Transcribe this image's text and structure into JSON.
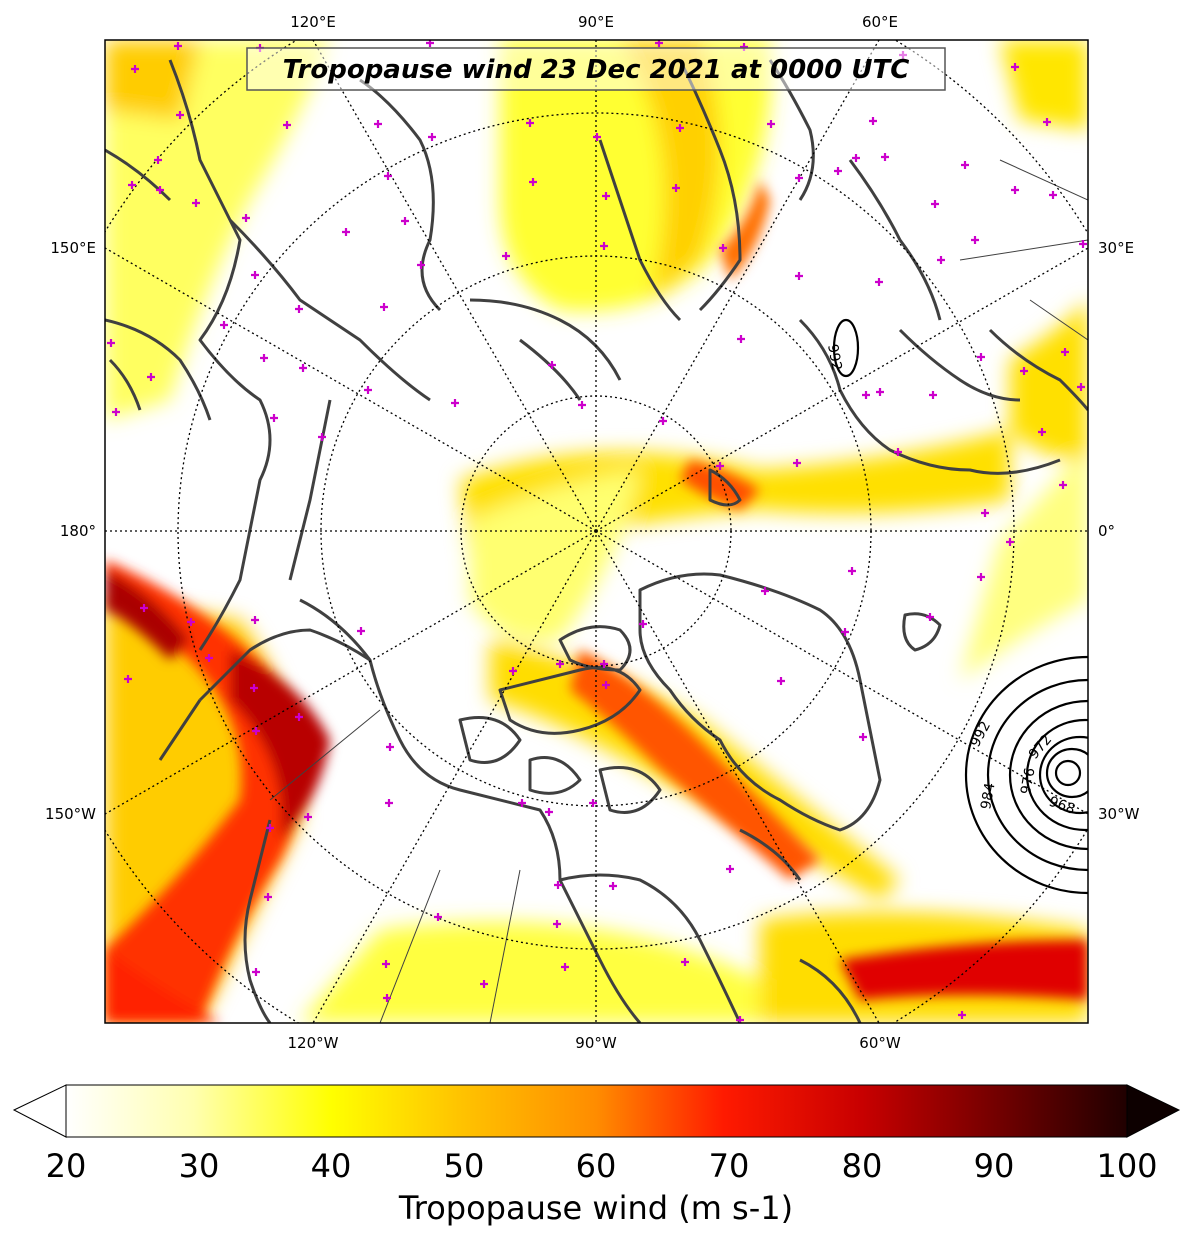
{
  "title": "Tropopause wind 23 Dec 2021 at 0000 UTC",
  "map": {
    "projection": "north-polar-stereographic",
    "field": "tropopause wind speed",
    "station_marker_color": "#cc00cc",
    "coastline_color": "#404040",
    "longitude_labels": {
      "top": [
        "120°E",
        "90°E",
        "60°E"
      ],
      "bottom": [
        "120°W",
        "90°W",
        "60°W"
      ],
      "left": [
        "150°E",
        "180°",
        "150°W"
      ],
      "right": [
        "30°E",
        "0°",
        "30°W"
      ]
    },
    "pressure_contours": {
      "units": "hPa",
      "labels": [
        "992",
        "992",
        "984",
        "976",
        "972",
        "968"
      ]
    }
  },
  "colorbar": {
    "label": "Tropopause wind (m s-1)",
    "ticks": [
      "20",
      "30",
      "40",
      "50",
      "60",
      "70",
      "80",
      "90",
      "100"
    ],
    "min": 20,
    "max": 100,
    "extend": "both",
    "colormap": [
      "#ffffff",
      "#ffff99",
      "#ffff00",
      "#ffcc00",
      "#ff9900",
      "#ff6600",
      "#ff0000",
      "#cc0000",
      "#990000",
      "#550000",
      "#1a0000"
    ]
  }
}
